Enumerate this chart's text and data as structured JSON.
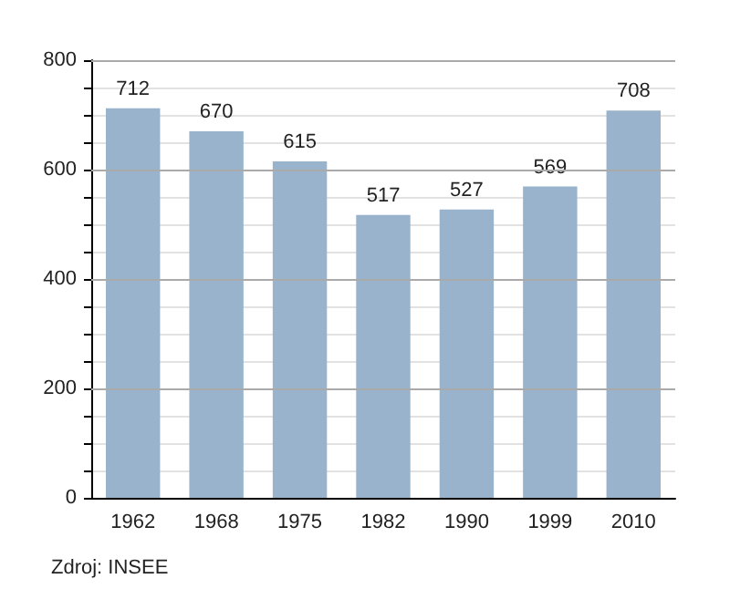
{
  "chart_data": {
    "type": "bar",
    "categories": [
      "1962",
      "1968",
      "1975",
      "1982",
      "1990",
      "1999",
      "2010"
    ],
    "values": [
      712,
      670,
      615,
      517,
      527,
      569,
      708
    ],
    "color": "#9ab3cd",
    "data_labels": true,
    "ylim": [
      0,
      800
    ],
    "yticks": [
      0,
      {
        "value": 50,
        "label": null
      },
      {
        "value": 100,
        "label": null
      },
      {
        "value": 150,
        "label": null
      },
      200,
      {
        "value": 250,
        "label": null
      },
      {
        "value": 300,
        "label": null
      },
      {
        "value": 350,
        "label": null
      },
      400,
      {
        "value": 450,
        "label": null
      },
      {
        "value": 500,
        "label": null
      },
      {
        "value": 550,
        "label": null
      },
      600,
      {
        "value": 650,
        "label": null
      },
      {
        "value": 700,
        "label": null
      },
      {
        "value": 750,
        "label": null
      },
      800
    ],
    "grid": "y",
    "annotations": [
      "Zdroj: INSEE"
    ]
  }
}
